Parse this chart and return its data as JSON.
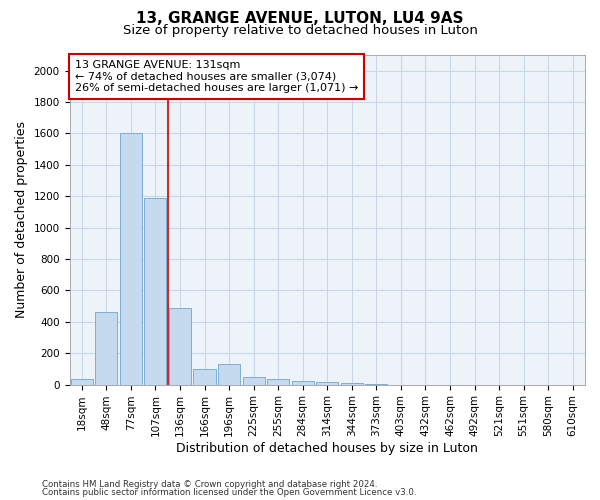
{
  "title": "13, GRANGE AVENUE, LUTON, LU4 9AS",
  "subtitle": "Size of property relative to detached houses in Luton",
  "xlabel": "Distribution of detached houses by size in Luton",
  "ylabel": "Number of detached properties",
  "footnote1": "Contains HM Land Registry data © Crown copyright and database right 2024.",
  "footnote2": "Contains public sector information licensed under the Open Government Licence v3.0.",
  "categories": [
    "18sqm",
    "48sqm",
    "77sqm",
    "107sqm",
    "136sqm",
    "166sqm",
    "196sqm",
    "225sqm",
    "255sqm",
    "284sqm",
    "314sqm",
    "344sqm",
    "373sqm",
    "403sqm",
    "432sqm",
    "462sqm",
    "492sqm",
    "521sqm",
    "551sqm",
    "580sqm",
    "610sqm"
  ],
  "values": [
    35,
    460,
    1600,
    1190,
    490,
    100,
    130,
    50,
    38,
    22,
    18,
    12,
    5,
    0,
    0,
    0,
    0,
    0,
    0,
    0,
    0
  ],
  "bar_color": "#c5d9ef",
  "bar_edge_color": "#7bafd4",
  "property_line_x": 3.5,
  "annotation_line1": "13 GRANGE AVENUE: 131sqm",
  "annotation_line2": "← 74% of detached houses are smaller (3,074)",
  "annotation_line3": "26% of semi-detached houses are larger (1,071) →",
  "annotation_box_color": "#ffffff",
  "annotation_box_edge_color": "#cc0000",
  "ylim": [
    0,
    2100
  ],
  "yticks": [
    0,
    200,
    400,
    600,
    800,
    1000,
    1200,
    1400,
    1600,
    1800,
    2000
  ],
  "grid_color": "#c8d8e8",
  "background_color": "#ffffff",
  "plot_bg_color": "#eef3fa",
  "title_fontsize": 11,
  "subtitle_fontsize": 9.5,
  "axis_label_fontsize": 9,
  "tick_fontsize": 7.5,
  "annotation_fontsize": 8
}
